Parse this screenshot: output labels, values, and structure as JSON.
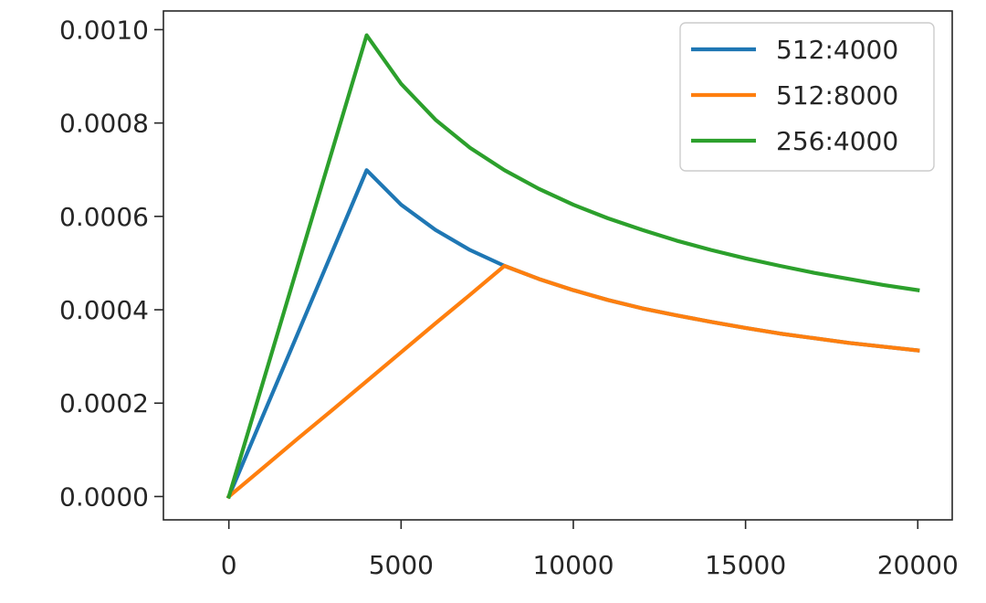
{
  "chart_data": {
    "type": "line",
    "title": "",
    "xlabel": "",
    "ylabel": "",
    "xlim": [
      -1900,
      21000
    ],
    "ylim": [
      -5e-05,
      0.00104
    ],
    "xticks": [
      0,
      5000,
      10000,
      15000,
      20000
    ],
    "xtick_labels": [
      "0",
      "5000",
      "10000",
      "15000",
      "20000"
    ],
    "yticks": [
      0.0,
      0.0002,
      0.0004,
      0.0006,
      0.0008,
      0.001
    ],
    "ytick_labels": [
      "0.0000",
      "0.0002",
      "0.0004",
      "0.0006",
      "0.0008",
      "0.0010"
    ],
    "grid": false,
    "legend_position": "top-right",
    "x": [
      0,
      1000,
      2000,
      3000,
      4000,
      5000,
      6000,
      7000,
      8000,
      9000,
      10000,
      11000,
      12000,
      13000,
      14000,
      15000,
      16000,
      17000,
      18000,
      19000,
      20000
    ],
    "series": [
      {
        "name": "512:4000",
        "color": "#1f77b4",
        "values": [
          0.0,
          0.000175,
          0.000349,
          0.000524,
          0.000699,
          0.000625,
          0.000571,
          0.000528,
          0.000494,
          0.000466,
          0.000442,
          0.000421,
          0.000403,
          0.000388,
          0.000374,
          0.000361,
          0.000349,
          0.000339,
          0.000329,
          0.000321,
          0.000313
        ]
      },
      {
        "name": "512:8000",
        "color": "#ff7f0e",
        "values": [
          0.0,
          6.18e-05,
          0.000124,
          0.000185,
          0.000247,
          0.000309,
          0.000371,
          0.000432,
          0.000494,
          0.000466,
          0.000442,
          0.000421,
          0.000403,
          0.000388,
          0.000374,
          0.000361,
          0.000349,
          0.000339,
          0.000329,
          0.000321,
          0.000313
        ]
      },
      {
        "name": "256:4000",
        "color": "#2ca02c",
        "values": [
          0.0,
          0.000247,
          0.000494,
          0.000741,
          0.000988,
          0.000884,
          0.000807,
          0.000747,
          0.000699,
          0.000659,
          0.000625,
          0.000596,
          0.000571,
          0.000548,
          0.000528,
          0.00051,
          0.000494,
          0.000479,
          0.000466,
          0.000453,
          0.000442
        ]
      }
    ]
  }
}
